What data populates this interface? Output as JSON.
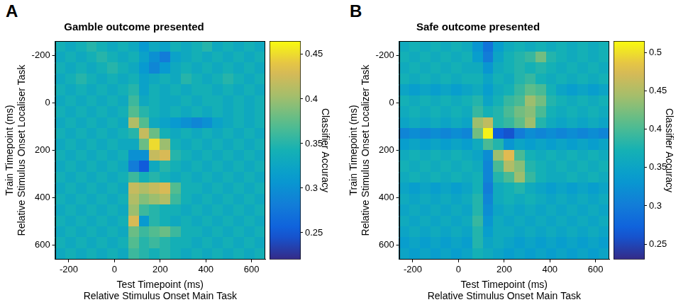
{
  "chart_data": [
    {
      "type": "heatmap",
      "panel": "A",
      "title": "Gamble outcome presented",
      "xlabel": [
        "Test Timepoint (ms)",
        "Relative Stimulus Onset Main Task"
      ],
      "ylabel": [
        "Train Timepoint (ms)",
        "Relative Stimulus Onset Localiser Task"
      ],
      "xlim": [
        -260,
        660
      ],
      "ylim": [
        -260,
        660
      ],
      "xticks": [
        -200,
        0,
        200,
        400,
        600
      ],
      "yticks": [
        -200,
        0,
        200,
        400,
        600
      ],
      "grid": false,
      "x": [
        -237,
        -191,
        -145,
        -99,
        -53,
        -7,
        39,
        85,
        131,
        177,
        223,
        269,
        315,
        361,
        407,
        453,
        499,
        545,
        591,
        637
      ],
      "y": [
        -237,
        -191,
        -145,
        -99,
        -53,
        -7,
        39,
        85,
        131,
        177,
        223,
        269,
        315,
        361,
        407,
        453,
        499,
        545,
        591,
        637
      ],
      "values": [
        [
          0.34,
          0.33,
          0.34,
          0.35,
          0.34,
          0.33,
          0.34,
          0.33,
          0.31,
          0.33,
          0.32,
          0.34,
          0.33,
          0.34,
          0.35,
          0.33,
          0.34,
          0.33,
          0.34,
          0.33
        ],
        [
          0.33,
          0.34,
          0.33,
          0.34,
          0.35,
          0.34,
          0.33,
          0.34,
          0.32,
          0.3,
          0.28,
          0.32,
          0.33,
          0.34,
          0.33,
          0.34,
          0.33,
          0.34,
          0.33,
          0.34
        ],
        [
          0.34,
          0.33,
          0.34,
          0.33,
          0.34,
          0.35,
          0.34,
          0.33,
          0.31,
          0.29,
          0.31,
          0.33,
          0.34,
          0.33,
          0.34,
          0.33,
          0.34,
          0.33,
          0.34,
          0.33
        ],
        [
          0.33,
          0.34,
          0.35,
          0.34,
          0.33,
          0.34,
          0.33,
          0.34,
          0.32,
          0.33,
          0.34,
          0.33,
          0.35,
          0.34,
          0.33,
          0.34,
          0.35,
          0.34,
          0.33,
          0.34
        ],
        [
          0.34,
          0.33,
          0.34,
          0.33,
          0.34,
          0.33,
          0.34,
          0.35,
          0.32,
          0.34,
          0.33,
          0.34,
          0.33,
          0.34,
          0.34,
          0.33,
          0.34,
          0.33,
          0.34,
          0.33
        ],
        [
          0.33,
          0.34,
          0.33,
          0.34,
          0.33,
          0.34,
          0.33,
          0.36,
          0.33,
          0.34,
          0.33,
          0.33,
          0.34,
          0.33,
          0.34,
          0.34,
          0.33,
          0.34,
          0.33,
          0.34
        ],
        [
          0.34,
          0.33,
          0.34,
          0.33,
          0.34,
          0.33,
          0.34,
          0.37,
          0.35,
          0.34,
          0.33,
          0.34,
          0.33,
          0.34,
          0.33,
          0.34,
          0.33,
          0.34,
          0.33,
          0.34
        ],
        [
          0.33,
          0.34,
          0.33,
          0.34,
          0.33,
          0.34,
          0.33,
          0.41,
          0.37,
          0.33,
          0.32,
          0.31,
          0.3,
          0.29,
          0.3,
          0.32,
          0.33,
          0.34,
          0.33,
          0.34
        ],
        [
          0.34,
          0.33,
          0.34,
          0.33,
          0.34,
          0.33,
          0.34,
          0.35,
          0.42,
          0.38,
          0.34,
          0.33,
          0.34,
          0.33,
          0.34,
          0.33,
          0.34,
          0.33,
          0.34,
          0.33
        ],
        [
          0.33,
          0.34,
          0.33,
          0.34,
          0.33,
          0.34,
          0.33,
          0.33,
          0.38,
          0.45,
          0.4,
          0.34,
          0.33,
          0.34,
          0.33,
          0.34,
          0.33,
          0.34,
          0.33,
          0.34
        ],
        [
          0.34,
          0.33,
          0.34,
          0.33,
          0.34,
          0.33,
          0.34,
          0.3,
          0.3,
          0.42,
          0.43,
          0.35,
          0.34,
          0.33,
          0.34,
          0.33,
          0.34,
          0.33,
          0.34,
          0.33
        ],
        [
          0.33,
          0.34,
          0.33,
          0.34,
          0.33,
          0.34,
          0.33,
          0.28,
          0.25,
          0.33,
          0.35,
          0.34,
          0.33,
          0.34,
          0.33,
          0.34,
          0.33,
          0.34,
          0.33,
          0.34
        ],
        [
          0.34,
          0.33,
          0.34,
          0.33,
          0.34,
          0.33,
          0.34,
          0.36,
          0.34,
          0.35,
          0.34,
          0.33,
          0.34,
          0.33,
          0.34,
          0.33,
          0.34,
          0.33,
          0.34,
          0.33
        ],
        [
          0.33,
          0.34,
          0.33,
          0.34,
          0.33,
          0.34,
          0.33,
          0.42,
          0.41,
          0.42,
          0.43,
          0.37,
          0.34,
          0.34,
          0.33,
          0.34,
          0.33,
          0.34,
          0.33,
          0.34
        ],
        [
          0.34,
          0.33,
          0.34,
          0.33,
          0.34,
          0.33,
          0.34,
          0.41,
          0.39,
          0.4,
          0.41,
          0.36,
          0.34,
          0.33,
          0.34,
          0.33,
          0.34,
          0.33,
          0.34,
          0.33
        ],
        [
          0.33,
          0.34,
          0.33,
          0.34,
          0.33,
          0.34,
          0.33,
          0.4,
          0.36,
          0.35,
          0.34,
          0.34,
          0.33,
          0.34,
          0.33,
          0.34,
          0.33,
          0.34,
          0.33,
          0.34
        ],
        [
          0.34,
          0.33,
          0.34,
          0.33,
          0.34,
          0.33,
          0.34,
          0.43,
          0.31,
          0.35,
          0.34,
          0.33,
          0.34,
          0.33,
          0.34,
          0.33,
          0.34,
          0.33,
          0.34,
          0.33
        ],
        [
          0.33,
          0.34,
          0.33,
          0.34,
          0.33,
          0.34,
          0.33,
          0.38,
          0.36,
          0.37,
          0.38,
          0.36,
          0.34,
          0.34,
          0.33,
          0.34,
          0.33,
          0.34,
          0.33,
          0.34
        ],
        [
          0.34,
          0.33,
          0.34,
          0.33,
          0.34,
          0.33,
          0.34,
          0.37,
          0.35,
          0.36,
          0.35,
          0.34,
          0.34,
          0.33,
          0.34,
          0.33,
          0.34,
          0.33,
          0.34,
          0.33
        ],
        [
          0.33,
          0.34,
          0.33,
          0.34,
          0.33,
          0.34,
          0.33,
          0.36,
          0.35,
          0.34,
          0.35,
          0.34,
          0.33,
          0.34,
          0.33,
          0.34,
          0.33,
          0.34,
          0.33,
          0.34
        ]
      ],
      "colorbar_label": "Classifier Accuracy",
      "colorbar_lim": [
        0.22,
        0.465
      ],
      "colorbar_ticks": [
        0.25,
        0.3,
        0.35,
        0.4,
        0.45
      ]
    },
    {
      "type": "heatmap",
      "panel": "B",
      "title": "Safe outcome presented",
      "xlabel": [
        "Test Timepoint (ms)",
        "Relative Stimulus Onset Main Task"
      ],
      "ylabel": [
        "Train Timepoint (ms)",
        "Relative Stimulus Onset Localizer Task"
      ],
      "xlim": [
        -260,
        660
      ],
      "ylim": [
        -260,
        660
      ],
      "xticks": [
        -200,
        0,
        200,
        400,
        600
      ],
      "yticks": [
        -200,
        0,
        200,
        400,
        600
      ],
      "grid": false,
      "x": [
        -237,
        -191,
        -145,
        -99,
        -53,
        -7,
        39,
        85,
        131,
        177,
        223,
        269,
        315,
        361,
        407,
        453,
        499,
        545,
        591,
        637
      ],
      "y": [
        -237,
        -191,
        -145,
        -99,
        -53,
        -7,
        39,
        85,
        131,
        177,
        223,
        269,
        315,
        361,
        407,
        453,
        499,
        545,
        591,
        637
      ],
      "values": [
        [
          0.36,
          0.37,
          0.36,
          0.37,
          0.36,
          0.37,
          0.36,
          0.33,
          0.29,
          0.34,
          0.36,
          0.37,
          0.36,
          0.37,
          0.36,
          0.37,
          0.36,
          0.37,
          0.36,
          0.37
        ],
        [
          0.37,
          0.36,
          0.37,
          0.36,
          0.37,
          0.36,
          0.37,
          0.34,
          0.3,
          0.35,
          0.37,
          0.38,
          0.39,
          0.42,
          0.38,
          0.37,
          0.36,
          0.37,
          0.36,
          0.37
        ],
        [
          0.36,
          0.37,
          0.36,
          0.37,
          0.36,
          0.37,
          0.36,
          0.36,
          0.33,
          0.36,
          0.37,
          0.38,
          0.37,
          0.38,
          0.37,
          0.36,
          0.37,
          0.36,
          0.37,
          0.36
        ],
        [
          0.37,
          0.36,
          0.37,
          0.36,
          0.37,
          0.36,
          0.37,
          0.37,
          0.35,
          0.37,
          0.36,
          0.38,
          0.39,
          0.37,
          0.36,
          0.37,
          0.36,
          0.37,
          0.36,
          0.37
        ],
        [
          0.35,
          0.34,
          0.35,
          0.34,
          0.35,
          0.34,
          0.35,
          0.36,
          0.34,
          0.36,
          0.37,
          0.39,
          0.41,
          0.4,
          0.37,
          0.35,
          0.34,
          0.35,
          0.34,
          0.35
        ],
        [
          0.37,
          0.36,
          0.37,
          0.36,
          0.37,
          0.36,
          0.37,
          0.38,
          0.35,
          0.37,
          0.39,
          0.4,
          0.44,
          0.42,
          0.38,
          0.37,
          0.36,
          0.37,
          0.36,
          0.37
        ],
        [
          0.36,
          0.37,
          0.36,
          0.37,
          0.36,
          0.37,
          0.36,
          0.39,
          0.37,
          0.38,
          0.4,
          0.42,
          0.43,
          0.4,
          0.37,
          0.36,
          0.37,
          0.36,
          0.37,
          0.36
        ],
        [
          0.35,
          0.36,
          0.35,
          0.36,
          0.35,
          0.36,
          0.35,
          0.44,
          0.46,
          0.38,
          0.39,
          0.41,
          0.44,
          0.38,
          0.36,
          0.35,
          0.36,
          0.35,
          0.36,
          0.35
        ],
        [
          0.31,
          0.32,
          0.31,
          0.32,
          0.31,
          0.32,
          0.31,
          0.42,
          0.51,
          0.27,
          0.26,
          0.3,
          0.32,
          0.31,
          0.32,
          0.31,
          0.32,
          0.31,
          0.32,
          0.31
        ],
        [
          0.34,
          0.35,
          0.34,
          0.35,
          0.34,
          0.35,
          0.34,
          0.36,
          0.4,
          0.38,
          0.33,
          0.35,
          0.34,
          0.35,
          0.34,
          0.35,
          0.34,
          0.35,
          0.34,
          0.35
        ],
        [
          0.36,
          0.37,
          0.36,
          0.37,
          0.36,
          0.37,
          0.36,
          0.35,
          0.32,
          0.44,
          0.48,
          0.4,
          0.37,
          0.36,
          0.37,
          0.36,
          0.37,
          0.36,
          0.37,
          0.36
        ],
        [
          0.37,
          0.36,
          0.37,
          0.36,
          0.37,
          0.36,
          0.37,
          0.36,
          0.31,
          0.4,
          0.45,
          0.43,
          0.38,
          0.37,
          0.36,
          0.37,
          0.36,
          0.37,
          0.36,
          0.37
        ],
        [
          0.36,
          0.37,
          0.36,
          0.37,
          0.36,
          0.37,
          0.36,
          0.37,
          0.31,
          0.38,
          0.4,
          0.44,
          0.39,
          0.37,
          0.36,
          0.36,
          0.37,
          0.36,
          0.37,
          0.36
        ],
        [
          0.35,
          0.34,
          0.35,
          0.34,
          0.35,
          0.34,
          0.35,
          0.37,
          0.3,
          0.36,
          0.37,
          0.38,
          0.36,
          0.35,
          0.34,
          0.35,
          0.34,
          0.35,
          0.34,
          0.35
        ],
        [
          0.36,
          0.35,
          0.36,
          0.35,
          0.36,
          0.35,
          0.36,
          0.38,
          0.31,
          0.36,
          0.37,
          0.36,
          0.37,
          0.36,
          0.35,
          0.36,
          0.35,
          0.36,
          0.35,
          0.36
        ],
        [
          0.35,
          0.36,
          0.35,
          0.36,
          0.35,
          0.36,
          0.35,
          0.38,
          0.32,
          0.35,
          0.36,
          0.35,
          0.36,
          0.35,
          0.36,
          0.35,
          0.36,
          0.35,
          0.36,
          0.35
        ],
        [
          0.36,
          0.35,
          0.36,
          0.35,
          0.36,
          0.35,
          0.36,
          0.39,
          0.33,
          0.36,
          0.35,
          0.36,
          0.35,
          0.36,
          0.35,
          0.36,
          0.35,
          0.36,
          0.35,
          0.36
        ],
        [
          0.35,
          0.36,
          0.35,
          0.36,
          0.35,
          0.36,
          0.35,
          0.38,
          0.34,
          0.36,
          0.36,
          0.35,
          0.36,
          0.35,
          0.36,
          0.35,
          0.36,
          0.35,
          0.36,
          0.35
        ],
        [
          0.34,
          0.35,
          0.34,
          0.35,
          0.34,
          0.35,
          0.34,
          0.38,
          0.35,
          0.36,
          0.35,
          0.34,
          0.35,
          0.34,
          0.35,
          0.34,
          0.35,
          0.34,
          0.35,
          0.34
        ],
        [
          0.35,
          0.34,
          0.35,
          0.34,
          0.35,
          0.34,
          0.35,
          0.37,
          0.36,
          0.35,
          0.34,
          0.35,
          0.34,
          0.35,
          0.34,
          0.35,
          0.34,
          0.35,
          0.34,
          0.35
        ]
      ],
      "colorbar_label": "Classifier Accuracy",
      "colorbar_lim": [
        0.23,
        0.515
      ],
      "colorbar_ticks": [
        0.25,
        0.3,
        0.35,
        0.4,
        0.45,
        0.5
      ]
    }
  ]
}
